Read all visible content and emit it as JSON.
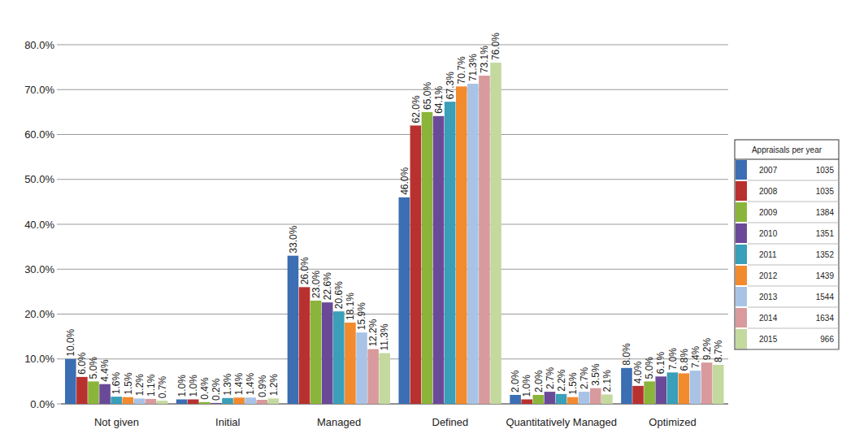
{
  "chart_data": {
    "type": "bar",
    "categories": [
      "Not given",
      "Initial",
      "Managed",
      "Defined",
      "Quantitatively Managed",
      "Optimized"
    ],
    "ylim": [
      0,
      80
    ],
    "yticks": [
      {
        "value": 0,
        "label": "0.0%"
      },
      {
        "value": 10,
        "label": "10.0%"
      },
      {
        "value": 20,
        "label": "20.0%"
      },
      {
        "value": 30,
        "label": "30.0%"
      },
      {
        "value": 40,
        "label": "40.0%"
      },
      {
        "value": 50,
        "label": "50.0%"
      },
      {
        "value": 60,
        "label": "60.0%"
      },
      {
        "value": 70,
        "label": "70.0%"
      },
      {
        "value": 80,
        "label": "80.0%"
      }
    ],
    "grid": true,
    "data_labels": true,
    "legend": "right",
    "legend_title": "Appraisals per year",
    "series": [
      {
        "name": "2007",
        "appraisals": 1035,
        "color": "#3b6eb2",
        "values": [
          10.0,
          1.0,
          33.0,
          46.0,
          2.0,
          8.0
        ],
        "value_labels": [
          "10.0%",
          "1.0%",
          "33.0%",
          "46.0%",
          "2.0%",
          "8.0%"
        ]
      },
      {
        "name": "2008",
        "appraisals": 1035,
        "color": "#b8312f",
        "values": [
          6.0,
          1.0,
          26.0,
          62.0,
          1.0,
          4.0
        ],
        "value_labels": [
          "6.0%",
          "1.0%",
          "26.0%",
          "62.0%",
          "1.0%",
          "4.0%"
        ]
      },
      {
        "name": "2009",
        "appraisals": 1384,
        "color": "#8bb43a",
        "values": [
          5.0,
          0.4,
          23.0,
          65.0,
          2.0,
          5.0
        ],
        "value_labels": [
          "5.0%",
          "0.4%",
          "23.0%",
          "65.0%",
          "2.0%",
          "5.0%"
        ]
      },
      {
        "name": "2010",
        "appraisals": 1351,
        "color": "#6a4a98",
        "values": [
          4.4,
          0.2,
          22.6,
          64.1,
          2.7,
          6.1
        ],
        "value_labels": [
          "4.4%",
          "0.2%",
          "22.6%",
          "64.1%",
          "2.7%",
          "6.1%"
        ]
      },
      {
        "name": "2011",
        "appraisals": 1352,
        "color": "#3a9fb8",
        "values": [
          1.6,
          1.3,
          20.6,
          67.3,
          2.2,
          7.0
        ],
        "value_labels": [
          "1.6%",
          "1.3%",
          "20.6%",
          "67.3%",
          "2.2%",
          "7.0%"
        ]
      },
      {
        "name": "2012",
        "appraisals": 1439,
        "color": "#f28a2e",
        "values": [
          1.5,
          1.4,
          18.1,
          70.7,
          1.5,
          6.8
        ],
        "value_labels": [
          "1.5%",
          "1.4%",
          "18.1%",
          "70.7%",
          "1.5%",
          "6.8%"
        ]
      },
      {
        "name": "2013",
        "appraisals": 1544,
        "color": "#a8c3e6",
        "values": [
          1.2,
          1.4,
          15.9,
          71.3,
          2.7,
          7.4
        ],
        "value_labels": [
          "1.2%",
          "1.4%",
          "15.9%",
          "71.3%",
          "2.7%",
          "7.4%"
        ]
      },
      {
        "name": "2014",
        "appraisals": 1634,
        "color": "#d89a9c",
        "values": [
          1.1,
          0.9,
          12.2,
          73.1,
          3.5,
          9.2
        ],
        "value_labels": [
          "1.1%",
          "0.9%",
          "12.2%",
          "73.1%",
          "3.5%",
          "9.2%"
        ]
      },
      {
        "name": "2015",
        "appraisals": 966,
        "color": "#c4d99e",
        "values": [
          0.7,
          1.2,
          11.3,
          76.0,
          2.1,
          8.7
        ],
        "value_labels": [
          "0.7%",
          "1.2%",
          "11.3%",
          "76.0%",
          "2.1%",
          "8.7%"
        ]
      }
    ]
  }
}
